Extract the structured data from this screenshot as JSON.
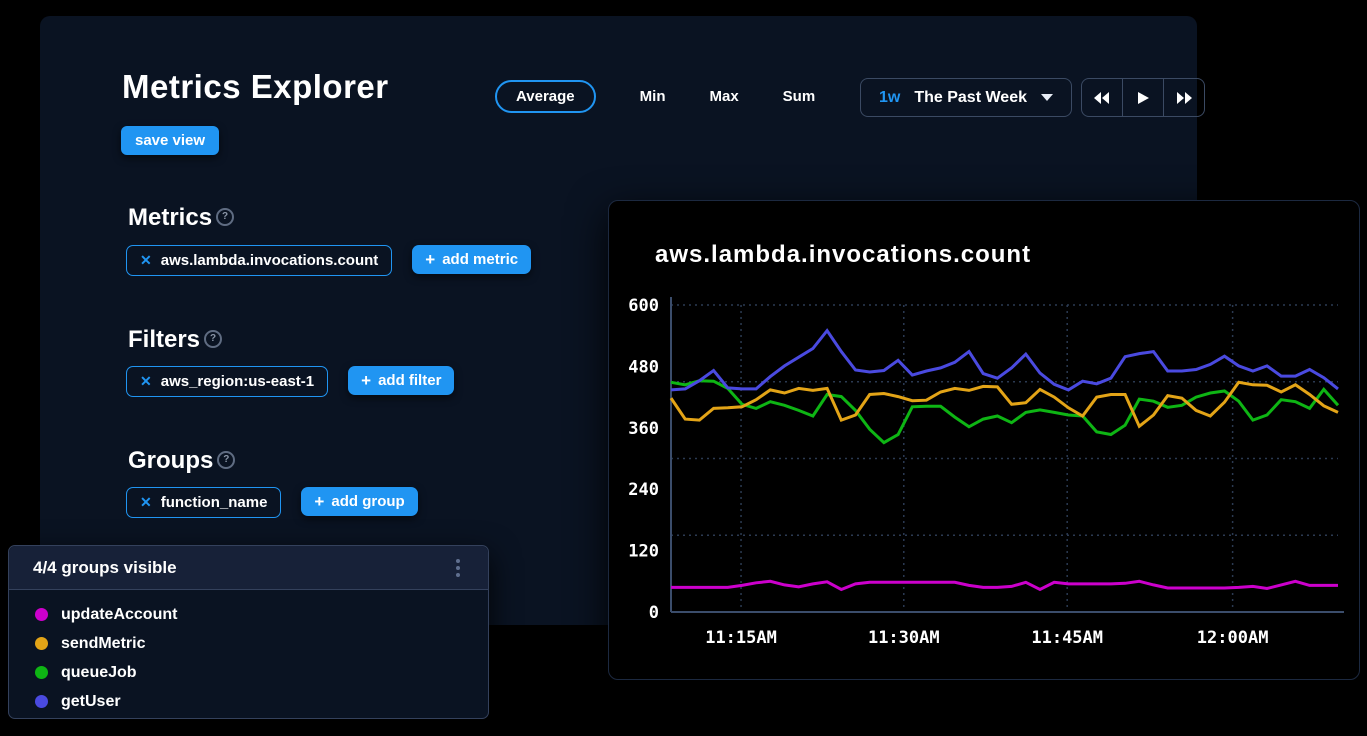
{
  "header": {
    "title": "Metrics Explorer",
    "aggregations": [
      {
        "label": "Average",
        "active": true
      },
      {
        "label": "Min",
        "active": false
      },
      {
        "label": "Max",
        "active": false
      },
      {
        "label": "Sum",
        "active": false
      }
    ],
    "time_range": {
      "shortcut": "1w",
      "label": "The Past Week"
    },
    "save_view_label": "save view"
  },
  "icons": {
    "close": "✕",
    "plus": "+",
    "help": "?"
  },
  "sections": [
    {
      "title": "Metrics",
      "chip": "aws.lambda.invocations.count",
      "add_label": "add metric"
    },
    {
      "title": "Filters",
      "chip": "aws_region:us-east-1",
      "add_label": "add filter"
    },
    {
      "title": "Groups",
      "chip": "function_name",
      "add_label": "add group"
    }
  ],
  "legend_panel": {
    "header": "4/4 groups visible",
    "items": [
      {
        "label": "updateAccount",
        "color": "#cc00cc"
      },
      {
        "label": "sendMetric",
        "color": "#e3a417"
      },
      {
        "label": "queueJob",
        "color": "#0eb514"
      },
      {
        "label": "getUser",
        "color": "#4a4ae0"
      }
    ]
  },
  "colors": {
    "accent_blue": "#2095f2",
    "panel_bg": "#0a1322",
    "chart_bg": "#000000",
    "grid": "#2b3a52",
    "axis": "#3b4d6b"
  },
  "chart_data": {
    "type": "line",
    "title": "aws.lambda.invocations.count",
    "ylabel": "",
    "xlabel": "",
    "ylim": [
      0,
      600
    ],
    "y_ticks": [
      600,
      480,
      360,
      240,
      120,
      0
    ],
    "x_ticks": [
      {
        "label": "11:15AM",
        "pos": 0.105
      },
      {
        "label": "11:30AM",
        "pos": 0.349
      },
      {
        "label": "11:45AM",
        "pos": 0.594
      },
      {
        "label": "12:00AM",
        "pos": 0.842
      }
    ],
    "grid": "dotted",
    "legend_position": "external-bottom-left",
    "series": [
      {
        "name": "updateAccount",
        "color": "#cc00cc",
        "values": [
          48,
          48,
          48,
          48,
          48,
          52,
          57,
          60,
          53,
          49,
          55,
          59,
          44,
          55,
          58,
          58,
          58,
          58,
          58,
          58,
          58,
          52,
          48,
          48,
          50,
          58,
          44,
          58,
          55,
          55,
          55,
          55,
          56,
          60,
          53,
          47,
          47,
          47,
          47,
          47,
          48,
          50,
          46,
          53,
          60,
          52,
          52,
          52
        ]
      },
      {
        "name": "queueJob",
        "color": "#0eb514",
        "values": [
          449,
          444,
          452,
          451,
          437,
          406,
          398,
          411,
          404,
          394,
          383,
          425,
          421,
          394,
          357,
          331,
          347,
          401,
          402,
          402,
          381,
          362,
          377,
          383,
          370,
          390,
          395,
          390,
          385,
          383,
          352,
          347,
          365,
          416,
          412,
          400,
          404,
          420,
          428,
          432,
          412,
          375,
          385,
          415,
          411,
          398,
          435,
          404
        ]
      },
      {
        "name": "sendMetric",
        "color": "#e3a417",
        "values": [
          418,
          377,
          375,
          398,
          399,
          401,
          415,
          434,
          428,
          437,
          433,
          437,
          375,
          385,
          425,
          427,
          421,
          413,
          414,
          430,
          437,
          433,
          441,
          440,
          406,
          409,
          435,
          420,
          399,
          383,
          420,
          425,
          425,
          363,
          385,
          423,
          418,
          394,
          383,
          410,
          449,
          444,
          443,
          430,
          444,
          425,
          403,
          390
        ]
      },
      {
        "name": "getUser",
        "color": "#4a4ae0",
        "values": [
          434,
          436,
          452,
          472,
          438,
          436,
          436,
          460,
          481,
          498,
          515,
          550,
          509,
          473,
          469,
          472,
          492,
          463,
          471,
          477,
          488,
          509,
          466,
          457,
          477,
          504,
          467,
          445,
          434,
          451,
          446,
          457,
          499,
          505,
          509,
          471,
          471,
          474,
          484,
          500,
          481,
          471,
          481,
          461,
          461,
          474,
          458,
          436
        ]
      }
    ]
  }
}
